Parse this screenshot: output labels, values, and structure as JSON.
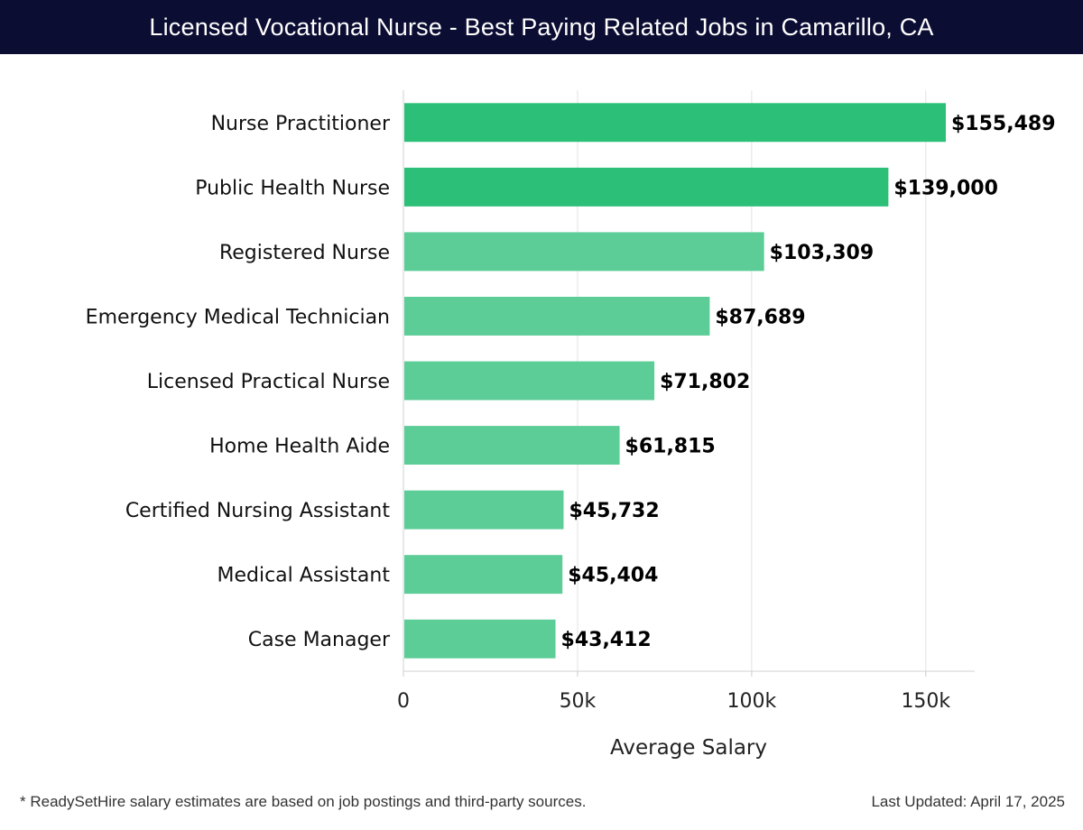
{
  "header": {
    "title": "Licensed Vocational Nurse - Best Paying Related Jobs in Camarillo, CA"
  },
  "chart_data": {
    "type": "bar",
    "orientation": "horizontal",
    "title": "Licensed Vocational Nurse - Best Paying Related Jobs in Camarillo, CA",
    "xlabel": "Average Salary",
    "ylabel": "",
    "xlim": [
      0,
      165000
    ],
    "xticks": [
      0,
      50000,
      100000,
      150000
    ],
    "xtick_labels": [
      "0",
      "50k",
      "100k",
      "150k"
    ],
    "grid": "vertical",
    "categories": [
      "Nurse Practitioner",
      "Public Health Nurse",
      "Registered Nurse",
      "Emergency Medical Technician",
      "Licensed Practical Nurse",
      "Home Health Aide",
      "Certified Nursing Assistant",
      "Medical Assistant",
      "Case Manager"
    ],
    "values": [
      155489,
      139000,
      103309,
      87689,
      71802,
      61815,
      45732,
      45404,
      43412
    ],
    "value_labels": [
      "$155,489",
      "$139,000",
      "$103,309",
      "$87,689",
      "$71,802",
      "$61,815",
      "$45,732",
      "$45,404",
      "$43,412"
    ],
    "bar_color_dark": "#2cbf77",
    "bar_color_light": "#5ccd97"
  },
  "footer": {
    "note": "* ReadySetHire salary estimates are based on job postings and third-party sources.",
    "updated": "Last Updated: April 17, 2025"
  }
}
